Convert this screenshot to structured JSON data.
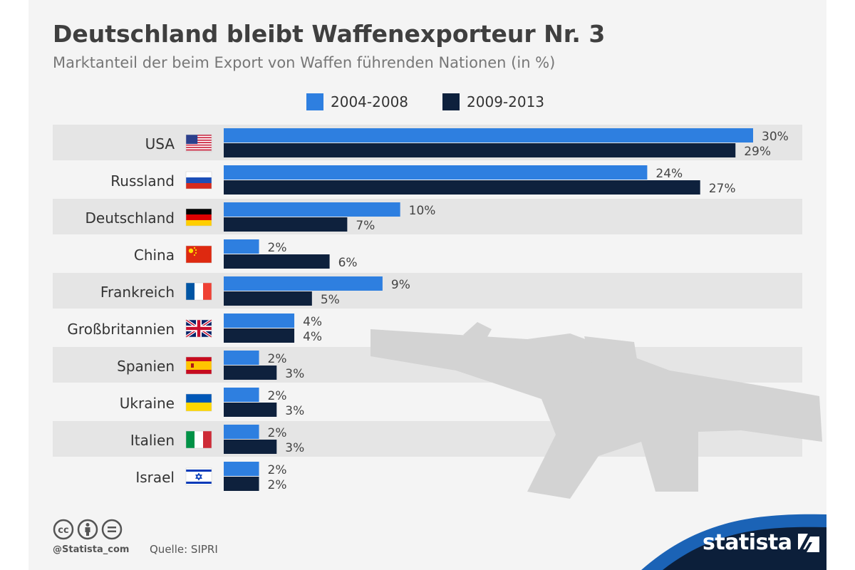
{
  "title": "Deutschland bleibt Waffenexporteur Nr. 3",
  "subtitle": "Marktanteil der beim Export von Waffen führenden Nationen (in %)",
  "colors": {
    "series1": "#2e7fe0",
    "series2": "#0e213d",
    "band": "#e5e5e5",
    "brand_blue": "#1b63b6",
    "brand_navy": "#0c1f3a",
    "silhouette": "#d3d3d3"
  },
  "chart_data": {
    "type": "bar",
    "orientation": "horizontal",
    "categories": [
      "USA",
      "Russland",
      "Deutschland",
      "China",
      "Frankreich",
      "Großbritannien",
      "Spanien",
      "Ukraine",
      "Italien",
      "Israel"
    ],
    "series": [
      {
        "name": "2004-2008",
        "values": [
          30,
          24,
          10,
          2,
          9,
          4,
          2,
          2,
          2,
          2
        ]
      },
      {
        "name": "2009-2013",
        "values": [
          29,
          27,
          7,
          6,
          5,
          4,
          3,
          3,
          3,
          2
        ]
      }
    ],
    "value_suffix": "%",
    "xlim": [
      0,
      30
    ],
    "legend_position": "top",
    "grid": false
  },
  "flags": [
    "usa-flag-icon",
    "russia-flag-icon",
    "germany-flag-icon",
    "china-flag-icon",
    "france-flag-icon",
    "uk-flag-icon",
    "spain-flag-icon",
    "ukraine-flag-icon",
    "italy-flag-icon",
    "israel-flag-icon"
  ],
  "footer": {
    "handle": "@Statista_com",
    "source": "Quelle: SIPRI",
    "brand": "statista",
    "license_icons": [
      "cc-icon",
      "by-icon",
      "nd-icon"
    ]
  }
}
